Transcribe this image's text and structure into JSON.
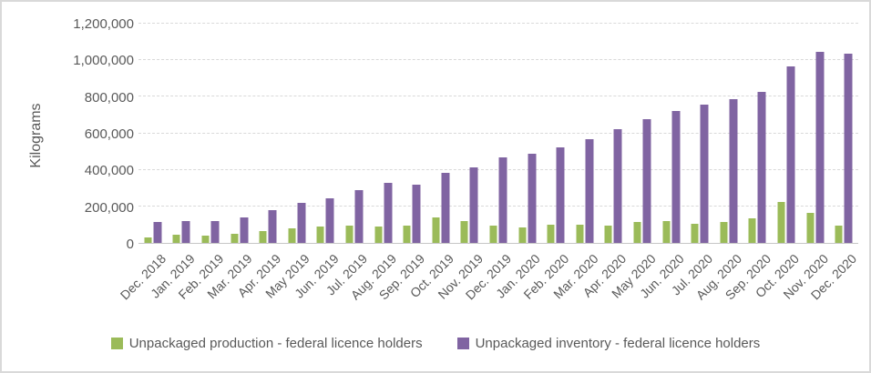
{
  "figure": {
    "background_color": "#FFFFFF",
    "border_color": "#D9D9D9"
  },
  "chart_data": {
    "type": "bar",
    "title": "",
    "ylabel": "Kilograms",
    "xlabel": "",
    "ylim": [
      0,
      1200000
    ],
    "ytick_interval": 200000,
    "ytick_values": [
      0,
      200000,
      400000,
      600000,
      800000,
      1000000,
      1200000
    ],
    "ytick_labels": [
      "0",
      "200,000",
      "400,000",
      "600,000",
      "800,000",
      "1,000,000",
      "1,200,000"
    ],
    "grid": true,
    "gridline_color": "#D9D9D9",
    "axis_line_color": "#C6C6C6",
    "axis_text_color": "#595959",
    "legend_position": "bottom",
    "categories": [
      "Dec. 2018",
      "Jan. 2019",
      "Feb. 2019",
      "Mar. 2019",
      "Apr. 2019",
      "May 2019",
      "Jun. 2019",
      "Jul. 2019",
      "Aug. 2019",
      "Sep. 2019",
      "Oct. 2019",
      "Nov. 2019",
      "Dec. 2019",
      "Jan. 2020",
      "Feb. 2020",
      "Mar. 2020",
      "Apr. 2020",
      "May 2020",
      "Jun. 2020",
      "Jul. 2020",
      "Aug. 2020",
      "Sep. 2020",
      "Oct. 2020",
      "Nov. 2020",
      "Dec. 2020"
    ],
    "series": [
      {
        "name": "Unpackaged production - federal licence holders",
        "color": "#9BBB59",
        "values": [
          32000,
          45000,
          39000,
          48000,
          66000,
          80000,
          88000,
          93000,
          91000,
          94000,
          141000,
          120000,
          97000,
          87000,
          102000,
          100000,
          94000,
          117000,
          121000,
          106000,
          113000,
          134000,
          224000,
          166000,
          95000
        ]
      },
      {
        "name": "Unpackaged inventory - federal licence holders",
        "color": "#8064A2",
        "values": [
          115000,
          122000,
          120000,
          141000,
          178000,
          221000,
          246000,
          290000,
          328000,
          317000,
          383000,
          411000,
          468000,
          489000,
          521000,
          566000,
          621000,
          676000,
          724000,
          757000,
          789000,
          826000,
          966000,
          1045000,
          1035000
        ]
      }
    ]
  }
}
